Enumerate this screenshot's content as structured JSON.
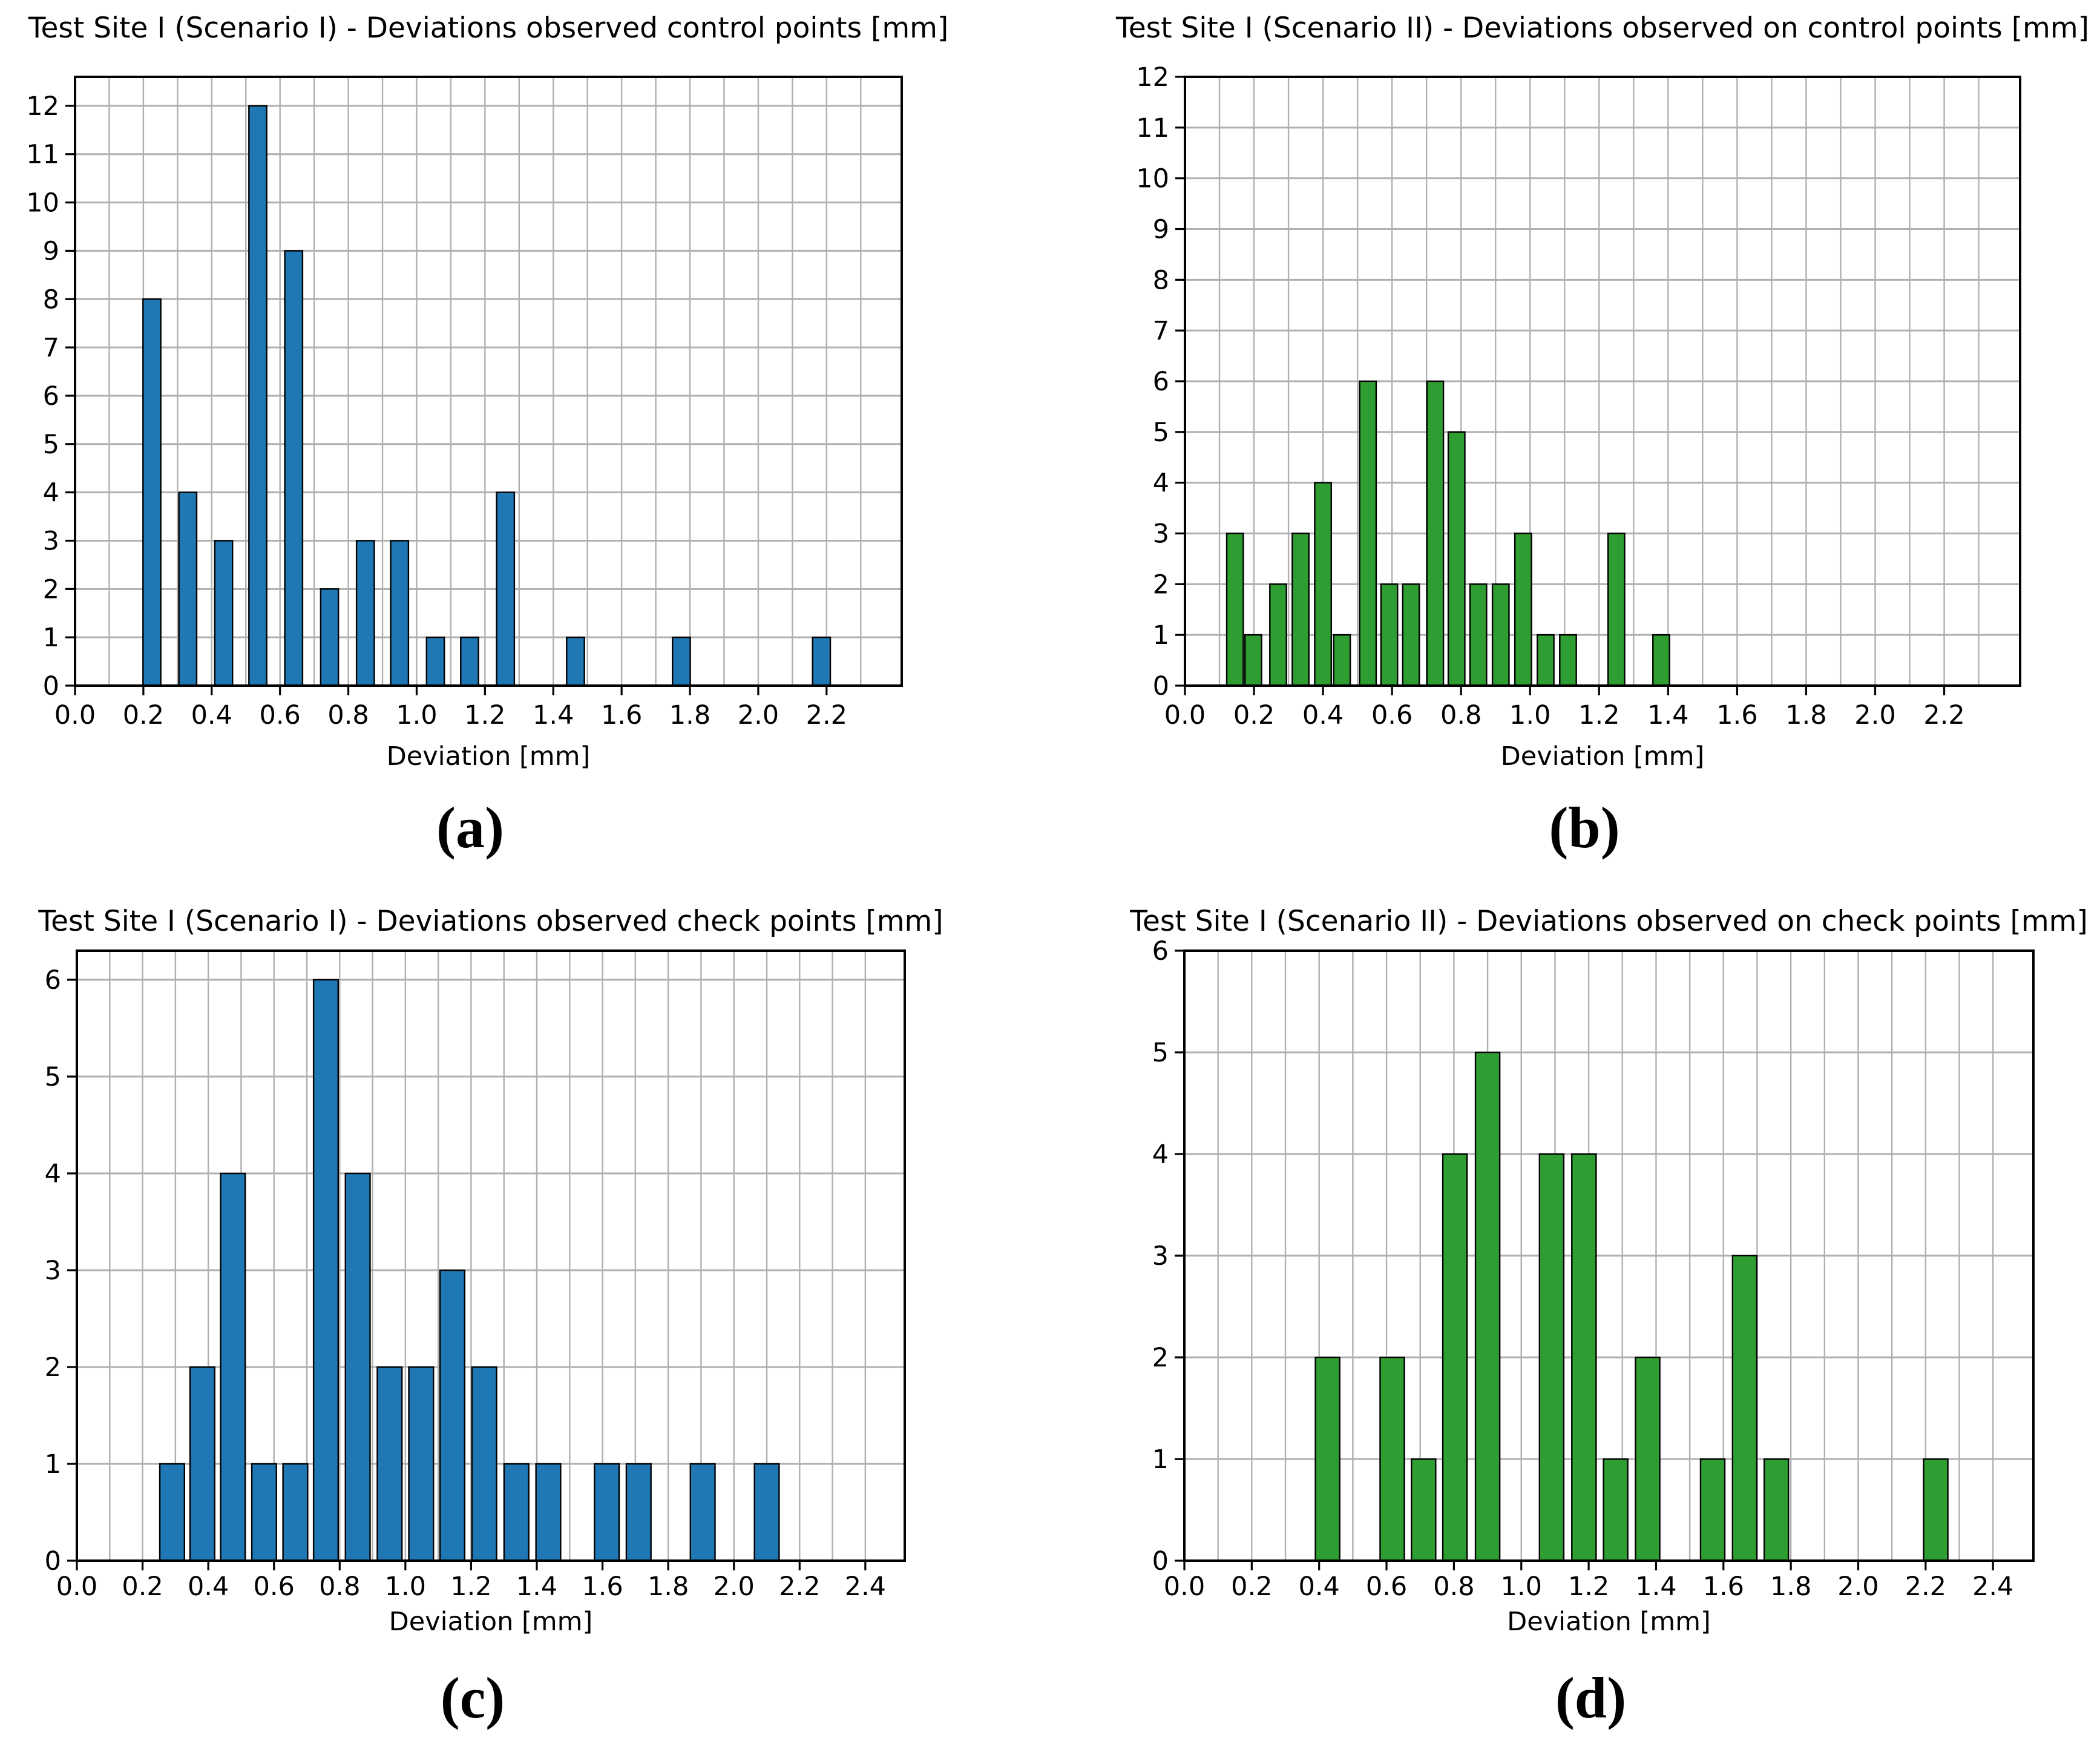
{
  "page": {
    "background": "#ffffff",
    "grid_color": "#b0b0b0",
    "spine_color": "#000000",
    "bar_edge_color": "#000000",
    "scenario1_color": "#1f77b4",
    "scenario2_color": "#2f9e32"
  },
  "chart_data": [
    {
      "id": "a",
      "type": "bar",
      "title": "Test Site I (Scenario I) - Deviations observed control points [mm]",
      "xlabel": "Deviation [mm]",
      "caption": "(a)",
      "bar_color": "#1f77b4",
      "edge_color": "#000000",
      "grid_color": "#b0b0b0",
      "legend": "none",
      "grid": "on",
      "xlim": [
        0.0,
        2.42
      ],
      "ylim": [
        0.0,
        12.6
      ],
      "grid_step_x": 0.1,
      "bar_width": 0.052,
      "xticks": [
        "0.0",
        "0.2",
        "0.4",
        "0.6",
        "0.8",
        "1.0",
        "1.2",
        "1.4",
        "1.6",
        "1.8",
        "2.0",
        "2.2"
      ],
      "yticks": [
        0,
        1,
        2,
        3,
        4,
        5,
        6,
        7,
        8,
        9,
        10,
        11,
        12
      ],
      "bars": [
        [
          0.225,
          8
        ],
        [
          0.33,
          4
        ],
        [
          0.435,
          3
        ],
        [
          0.535,
          12
        ],
        [
          0.64,
          9
        ],
        [
          0.745,
          2
        ],
        [
          0.85,
          3
        ],
        [
          0.95,
          3
        ],
        [
          1.055,
          1
        ],
        [
          1.155,
          1
        ],
        [
          1.26,
          4
        ],
        [
          1.465,
          1
        ],
        [
          1.775,
          1
        ],
        [
          2.185,
          1
        ]
      ]
    },
    {
      "id": "b",
      "type": "bar",
      "title": "Test Site I (Scenario II) - Deviations observed on control points [mm]",
      "xlabel": "Deviation [mm]",
      "caption": "(b)",
      "bar_color": "#2f9e32",
      "edge_color": "#000000",
      "grid_color": "#b0b0b0",
      "legend": "none",
      "grid": "on",
      "xlim": [
        0.0,
        2.42
      ],
      "ylim": [
        0.0,
        12.0
      ],
      "grid_step_x": 0.1,
      "bar_width": 0.048,
      "xticks": [
        "0.0",
        "0.2",
        "0.4",
        "0.6",
        "0.8",
        "1.0",
        "1.2",
        "1.4",
        "1.6",
        "1.8",
        "2.0",
        "2.2"
      ],
      "yticks": [
        0,
        1,
        2,
        3,
        4,
        5,
        6,
        7,
        8,
        9,
        10,
        11,
        12
      ],
      "bars": [
        [
          0.145,
          3
        ],
        [
          0.198,
          1
        ],
        [
          0.27,
          2
        ],
        [
          0.335,
          3
        ],
        [
          0.4,
          4
        ],
        [
          0.455,
          1
        ],
        [
          0.53,
          6
        ],
        [
          0.592,
          2
        ],
        [
          0.655,
          2
        ],
        [
          0.725,
          6
        ],
        [
          0.787,
          5
        ],
        [
          0.85,
          2
        ],
        [
          0.915,
          2
        ],
        [
          0.98,
          3
        ],
        [
          1.045,
          1
        ],
        [
          1.11,
          1
        ],
        [
          1.25,
          3
        ],
        [
          1.38,
          1
        ]
      ]
    },
    {
      "id": "c",
      "type": "bar",
      "title": "Test Site I (Scenario I) - Deviations observed check points [mm]",
      "xlabel": "Deviation [mm]",
      "caption": "(c)",
      "bar_color": "#1f77b4",
      "edge_color": "#000000",
      "grid_color": "#b0b0b0",
      "legend": "none",
      "grid": "on",
      "xlim": [
        0.0,
        2.52
      ],
      "ylim": [
        0.0,
        6.3
      ],
      "grid_step_x": 0.1,
      "bar_width": 0.075,
      "xticks": [
        "0.0",
        "0.2",
        "0.4",
        "0.6",
        "0.8",
        "1.0",
        "1.2",
        "1.4",
        "1.6",
        "1.8",
        "2.0",
        "2.2",
        "2.4"
      ],
      "yticks": [
        0,
        1,
        2,
        3,
        4,
        5,
        6
      ],
      "bars": [
        [
          0.29,
          1
        ],
        [
          0.382,
          2
        ],
        [
          0.475,
          4
        ],
        [
          0.57,
          1
        ],
        [
          0.665,
          1
        ],
        [
          0.758,
          6
        ],
        [
          0.855,
          4
        ],
        [
          0.952,
          2
        ],
        [
          1.048,
          2
        ],
        [
          1.143,
          3
        ],
        [
          1.24,
          2
        ],
        [
          1.338,
          1
        ],
        [
          1.435,
          1
        ],
        [
          1.613,
          1
        ],
        [
          1.71,
          1
        ],
        [
          1.905,
          1
        ],
        [
          2.1,
          1
        ]
      ]
    },
    {
      "id": "d",
      "type": "bar",
      "title": "Test Site I (Scenario II) - Deviations observed on check points [mm]",
      "xlabel": "Deviation [mm]",
      "caption": "(d)",
      "bar_color": "#2f9e32",
      "edge_color": "#000000",
      "grid_color": "#b0b0b0",
      "legend": "none",
      "grid": "on",
      "xlim": [
        0.0,
        2.52
      ],
      "ylim": [
        0.0,
        6.0
      ],
      "grid_step_x": 0.1,
      "bar_width": 0.072,
      "xticks": [
        "0.0",
        "0.2",
        "0.4",
        "0.6",
        "0.8",
        "1.0",
        "1.2",
        "1.4",
        "1.6",
        "1.8",
        "2.0",
        "2.2",
        "2.4"
      ],
      "yticks": [
        0,
        1,
        2,
        3,
        4,
        5,
        6
      ],
      "bars": [
        [
          0.425,
          2
        ],
        [
          0.617,
          2
        ],
        [
          0.71,
          1
        ],
        [
          0.803,
          4
        ],
        [
          0.9,
          5
        ],
        [
          1.09,
          4
        ],
        [
          1.186,
          4
        ],
        [
          1.28,
          1
        ],
        [
          1.375,
          2
        ],
        [
          1.568,
          1
        ],
        [
          1.663,
          3
        ],
        [
          1.757,
          1
        ],
        [
          2.23,
          1
        ]
      ]
    }
  ]
}
